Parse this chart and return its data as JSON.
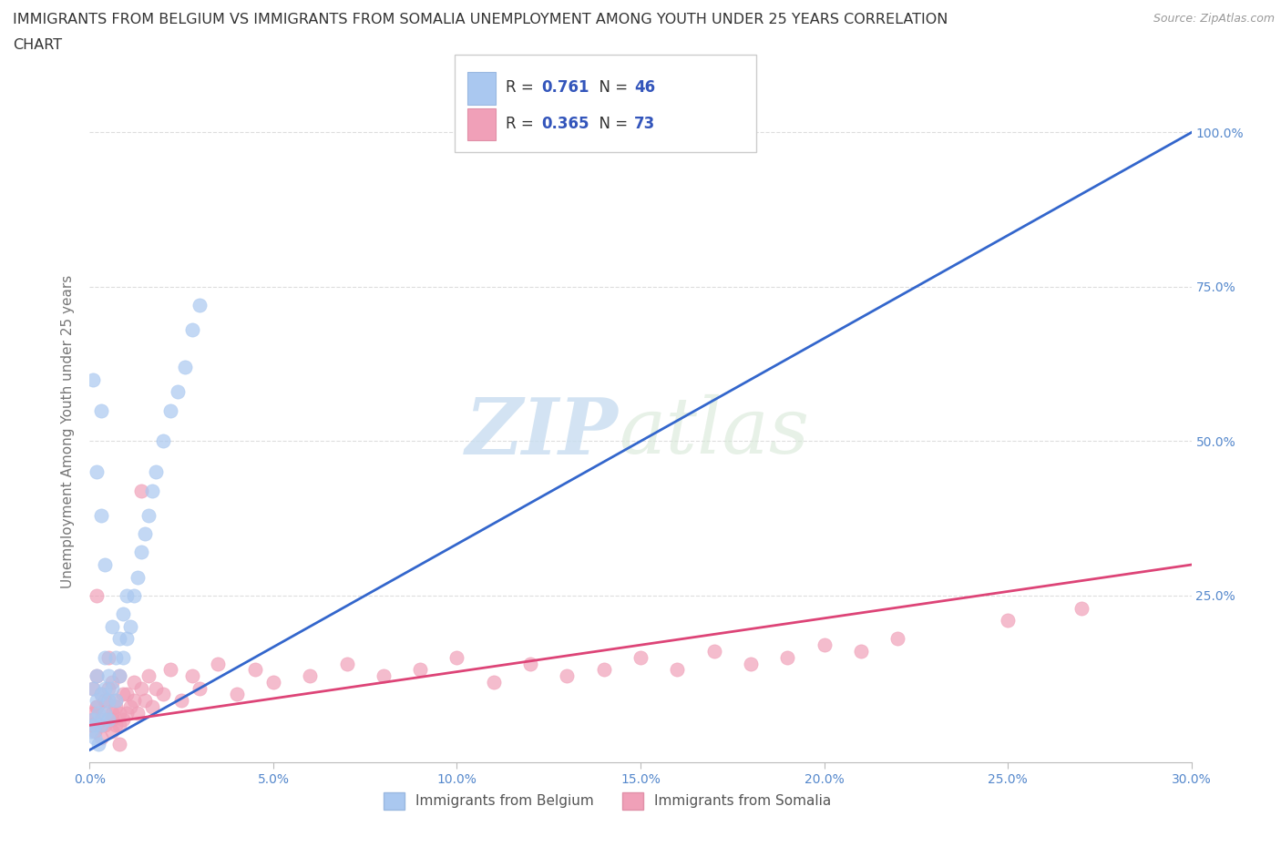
{
  "title_line1": "IMMIGRANTS FROM BELGIUM VS IMMIGRANTS FROM SOMALIA UNEMPLOYMENT AMONG YOUTH UNDER 25 YEARS CORRELATION",
  "title_line2": "CHART",
  "source": "Source: ZipAtlas.com",
  "ylabel": "Unemployment Among Youth under 25 years",
  "xlim": [
    0.0,
    0.3
  ],
  "ylim": [
    -0.02,
    1.05
  ],
  "xtick_labels": [
    "0.0%",
    "5.0%",
    "10.0%",
    "15.0%",
    "20.0%",
    "25.0%",
    "30.0%"
  ],
  "xtick_vals": [
    0.0,
    0.05,
    0.1,
    0.15,
    0.2,
    0.25,
    0.3
  ],
  "ytick_labels_right": [
    "25.0%",
    "50.0%",
    "75.0%",
    "100.0%"
  ],
  "ytick_vals_right": [
    0.25,
    0.5,
    0.75,
    1.0
  ],
  "belgium_color": "#aac8f0",
  "somalia_color": "#f0a0b8",
  "belgium_line_color": "#3366cc",
  "somalia_line_color": "#dd4477",
  "belgium_R": 0.761,
  "belgium_N": 46,
  "somalia_R": 0.365,
  "somalia_N": 73,
  "watermark_zip": "ZIP",
  "watermark_atlas": "atlas",
  "watermark_color": "#ccddf0",
  "belgium_label": "Immigrants from Belgium",
  "somalia_label": "Immigrants from Somalia",
  "legend_R_color": "#3355bb",
  "background_color": "#ffffff",
  "grid_color": "#dddddd",
  "belgium_line_x": [
    0.0,
    0.3
  ],
  "belgium_line_y": [
    0.0,
    1.0
  ],
  "somalia_line_x": [
    0.0,
    0.3
  ],
  "somalia_line_y": [
    0.04,
    0.3
  ],
  "belgium_scatter_x": [
    0.0005,
    0.001,
    0.001,
    0.0015,
    0.002,
    0.002,
    0.0025,
    0.003,
    0.003,
    0.003,
    0.004,
    0.004,
    0.004,
    0.005,
    0.005,
    0.005,
    0.006,
    0.006,
    0.007,
    0.007,
    0.008,
    0.008,
    0.009,
    0.009,
    0.01,
    0.01,
    0.011,
    0.012,
    0.013,
    0.014,
    0.015,
    0.016,
    0.017,
    0.018,
    0.02,
    0.022,
    0.024,
    0.026,
    0.028,
    0.03,
    0.001,
    0.002,
    0.003,
    0.004,
    0.0015,
    0.0025
  ],
  "belgium_scatter_y": [
    0.03,
    0.05,
    0.1,
    0.04,
    0.08,
    0.12,
    0.06,
    0.04,
    0.09,
    0.55,
    0.06,
    0.1,
    0.15,
    0.05,
    0.08,
    0.12,
    0.1,
    0.2,
    0.08,
    0.15,
    0.12,
    0.18,
    0.15,
    0.22,
    0.18,
    0.25,
    0.2,
    0.25,
    0.28,
    0.32,
    0.35,
    0.38,
    0.42,
    0.45,
    0.5,
    0.55,
    0.58,
    0.62,
    0.68,
    0.72,
    0.6,
    0.45,
    0.38,
    0.3,
    0.02,
    0.01
  ],
  "somalia_scatter_x": [
    0.0005,
    0.001,
    0.001,
    0.0015,
    0.002,
    0.002,
    0.003,
    0.003,
    0.004,
    0.004,
    0.005,
    0.005,
    0.006,
    0.006,
    0.007,
    0.007,
    0.008,
    0.008,
    0.009,
    0.01,
    0.011,
    0.012,
    0.013,
    0.014,
    0.015,
    0.016,
    0.017,
    0.018,
    0.02,
    0.022,
    0.025,
    0.028,
    0.03,
    0.035,
    0.04,
    0.045,
    0.05,
    0.06,
    0.07,
    0.08,
    0.09,
    0.1,
    0.11,
    0.12,
    0.13,
    0.14,
    0.15,
    0.16,
    0.17,
    0.18,
    0.19,
    0.2,
    0.21,
    0.22,
    0.25,
    0.27,
    0.001,
    0.002,
    0.003,
    0.004,
    0.005,
    0.006,
    0.007,
    0.008,
    0.009,
    0.01,
    0.012,
    0.014,
    0.003,
    0.005,
    0.006,
    0.008,
    0.002
  ],
  "somalia_scatter_y": [
    0.04,
    0.06,
    0.1,
    0.03,
    0.07,
    0.12,
    0.05,
    0.09,
    0.04,
    0.08,
    0.05,
    0.1,
    0.06,
    0.11,
    0.04,
    0.08,
    0.06,
    0.12,
    0.05,
    0.09,
    0.07,
    0.11,
    0.06,
    0.42,
    0.08,
    0.12,
    0.07,
    0.1,
    0.09,
    0.13,
    0.08,
    0.12,
    0.1,
    0.14,
    0.09,
    0.13,
    0.11,
    0.12,
    0.14,
    0.12,
    0.13,
    0.15,
    0.11,
    0.14,
    0.12,
    0.13,
    0.15,
    0.13,
    0.16,
    0.14,
    0.15,
    0.17,
    0.16,
    0.18,
    0.21,
    0.23,
    0.05,
    0.07,
    0.04,
    0.06,
    0.08,
    0.05,
    0.07,
    0.04,
    0.09,
    0.06,
    0.08,
    0.1,
    0.02,
    0.15,
    0.03,
    0.01,
    0.25
  ]
}
